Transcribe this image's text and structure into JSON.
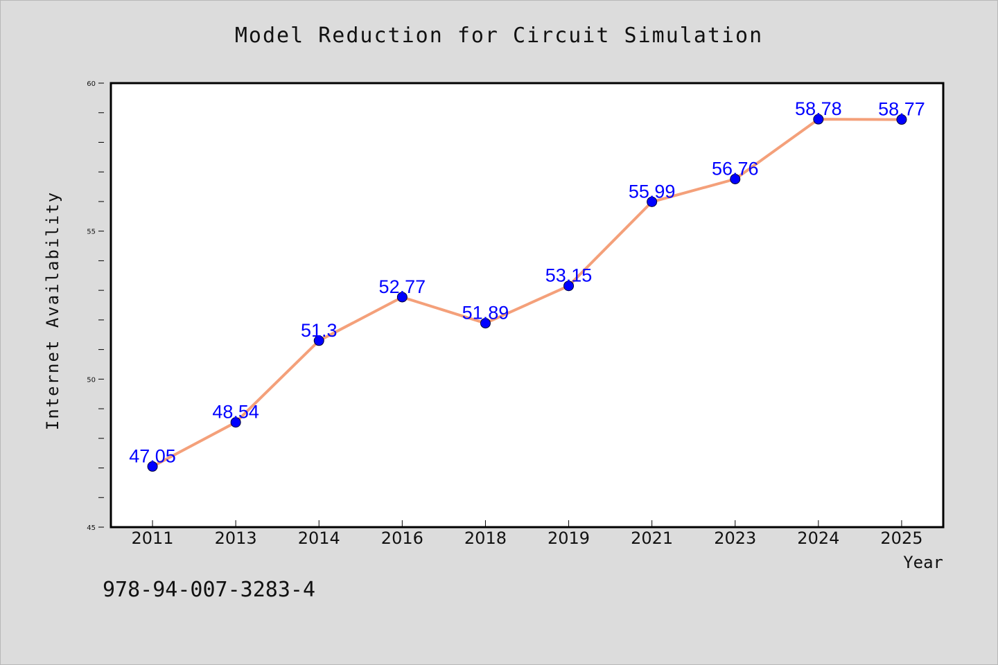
{
  "chart_data": {
    "type": "line",
    "title": "Model Reduction for Circuit Simulation",
    "xlabel": "Year",
    "ylabel": "Internet Availability",
    "categories": [
      "2011",
      "2013",
      "2014",
      "2016",
      "2018",
      "2019",
      "2021",
      "2023",
      "2024",
      "2025"
    ],
    "series": [
      {
        "values": [
          47.05,
          48.54,
          51.3,
          52.77,
          51.89,
          53.15,
          55.99,
          56.76,
          58.78,
          58.77
        ],
        "data_labels": [
          "47.05",
          "48.54",
          "51.3",
          "52.77",
          "51.89",
          "53.15",
          "55.99",
          "56.76",
          "58.78",
          "58.77"
        ]
      }
    ],
    "ylim": [
      45,
      60
    ],
    "y_ticks": [
      "45",
      "50",
      "55",
      "60"
    ],
    "y_minor_step": 1,
    "grid": false,
    "legend": "none"
  },
  "footnote": "978-94-007-3283-4",
  "colors": {
    "background": "#dcdcdc",
    "plot_area": "#ffffff",
    "line": "#f4a07a",
    "marker": "#0000ff",
    "data_label": "#0000ff",
    "axis": "#000000"
  }
}
